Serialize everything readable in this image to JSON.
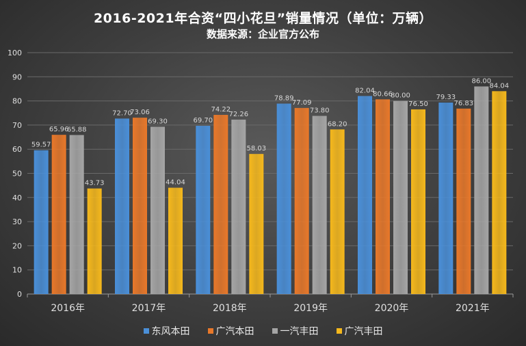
{
  "header": {
    "title": "2016-2021年合资“四小花旦”销量情况（单位：万辆）",
    "subtitle": "数据来源：企业官方公布"
  },
  "colors": {
    "series": [
      "#4a8fd8",
      "#e8782a",
      "#a5a5a5",
      "#f5b81c"
    ],
    "axis_text": "#e0e0e0",
    "grid": "#6a6a6a"
  },
  "chart_data": {
    "type": "bar",
    "title": "2016-2021年合资“四小花旦”销量情况（单位：万辆）",
    "subtitle": "数据来源：企业官方公布",
    "xlabel": "",
    "ylabel": "",
    "ylim": [
      0,
      100
    ],
    "yticks": [
      0,
      10,
      20,
      30,
      40,
      50,
      60,
      70,
      80,
      90,
      100
    ],
    "grid": true,
    "legend_position": "bottom",
    "categories": [
      "2016年",
      "2017年",
      "2018年",
      "2019年",
      "2020年",
      "2021年"
    ],
    "series": [
      {
        "name": "东风本田",
        "values": [
          59.57,
          72.7,
          69.7,
          78.89,
          82.04,
          79.33
        ]
      },
      {
        "name": "广汽本田",
        "values": [
          65.96,
          73.06,
          74.22,
          77.09,
          80.66,
          76.83
        ]
      },
      {
        "name": "一汽丰田",
        "values": [
          65.88,
          69.3,
          72.26,
          73.8,
          80.0,
          86.0
        ]
      },
      {
        "name": "广汽丰田",
        "values": [
          43.73,
          44.04,
          58.03,
          68.2,
          76.5,
          84.04
        ]
      }
    ]
  }
}
